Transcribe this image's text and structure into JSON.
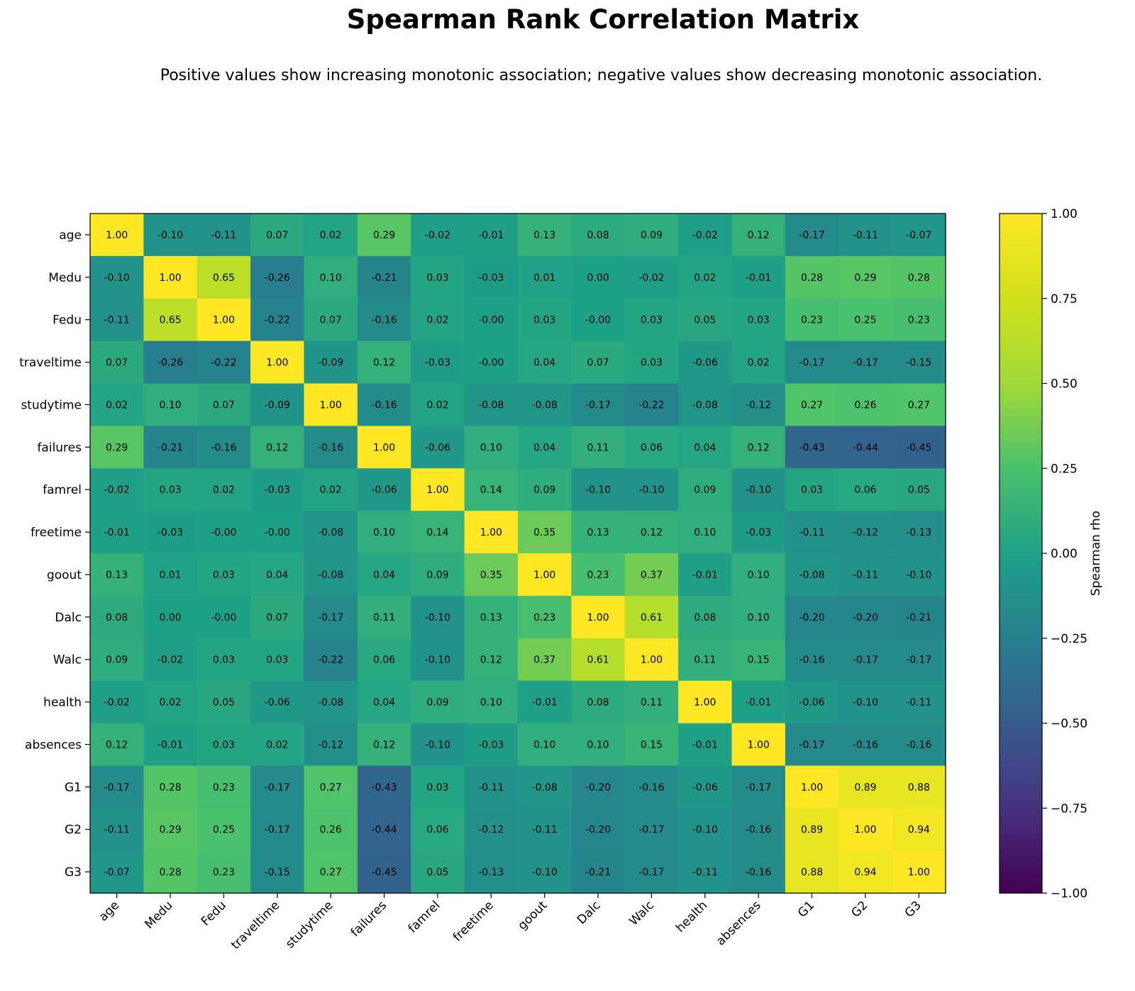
{
  "chart_data": {
    "type": "heatmap",
    "title": "Spearman Rank Correlation Matrix",
    "subtitle": "Positive values show increasing monotonic association; negative values show decreasing monotonic association.",
    "variables": [
      "age",
      "Medu",
      "Fedu",
      "traveltime",
      "studytime",
      "failures",
      "famrel",
      "freetime",
      "goout",
      "Dalc",
      "Walc",
      "health",
      "absences",
      "G1",
      "G2",
      "G3"
    ],
    "values": [
      [
        1.0,
        -0.1,
        -0.11,
        0.07,
        0.02,
        0.29,
        -0.02,
        -0.01,
        0.13,
        0.08,
        0.09,
        -0.02,
        0.12,
        -0.17,
        -0.11,
        -0.07
      ],
      [
        -0.1,
        1.0,
        0.65,
        -0.26,
        0.1,
        -0.21,
        0.03,
        -0.03,
        0.01,
        0.0,
        -0.02,
        0.02,
        -0.01,
        0.28,
        0.29,
        0.28
      ],
      [
        -0.11,
        0.65,
        1.0,
        -0.22,
        0.07,
        -0.16,
        0.02,
        -0.0,
        0.03,
        -0.0,
        0.03,
        0.05,
        0.03,
        0.23,
        0.25,
        0.23
      ],
      [
        0.07,
        -0.26,
        -0.22,
        1.0,
        -0.09,
        0.12,
        -0.03,
        -0.0,
        0.04,
        0.07,
        0.03,
        -0.06,
        0.02,
        -0.17,
        -0.17,
        -0.15
      ],
      [
        0.02,
        0.1,
        0.07,
        -0.09,
        1.0,
        -0.16,
        0.02,
        -0.08,
        -0.08,
        -0.17,
        -0.22,
        -0.08,
        -0.12,
        0.27,
        0.26,
        0.27
      ],
      [
        0.29,
        -0.21,
        -0.16,
        0.12,
        -0.16,
        1.0,
        -0.06,
        0.1,
        0.04,
        0.11,
        0.06,
        0.04,
        0.12,
        -0.43,
        -0.44,
        -0.45
      ],
      [
        -0.02,
        0.03,
        0.02,
        -0.03,
        0.02,
        -0.06,
        1.0,
        0.14,
        0.09,
        -0.1,
        -0.1,
        0.09,
        -0.1,
        0.03,
        0.06,
        0.05
      ],
      [
        -0.01,
        -0.03,
        -0.0,
        -0.0,
        -0.08,
        0.1,
        0.14,
        1.0,
        0.35,
        0.13,
        0.12,
        0.1,
        -0.03,
        -0.11,
        -0.12,
        -0.13
      ],
      [
        0.13,
        0.01,
        0.03,
        0.04,
        -0.08,
        0.04,
        0.09,
        0.35,
        1.0,
        0.23,
        0.37,
        -0.01,
        0.1,
        -0.08,
        -0.11,
        -0.1
      ],
      [
        0.08,
        0.0,
        -0.0,
        0.07,
        -0.17,
        0.11,
        -0.1,
        0.13,
        0.23,
        1.0,
        0.61,
        0.08,
        0.1,
        -0.2,
        -0.2,
        -0.21
      ],
      [
        0.09,
        -0.02,
        0.03,
        0.03,
        -0.22,
        0.06,
        -0.1,
        0.12,
        0.37,
        0.61,
        1.0,
        0.11,
        0.15,
        -0.16,
        -0.17,
        -0.17
      ],
      [
        -0.02,
        0.02,
        0.05,
        -0.06,
        -0.08,
        0.04,
        0.09,
        0.1,
        -0.01,
        0.08,
        0.11,
        1.0,
        -0.01,
        -0.06,
        -0.1,
        -0.11
      ],
      [
        0.12,
        -0.01,
        0.03,
        0.02,
        -0.12,
        0.12,
        -0.1,
        -0.03,
        0.1,
        0.1,
        0.15,
        -0.01,
        1.0,
        -0.17,
        -0.16,
        -0.16
      ],
      [
        -0.17,
        0.28,
        0.23,
        -0.17,
        0.27,
        -0.43,
        0.03,
        -0.11,
        -0.08,
        -0.2,
        -0.16,
        -0.06,
        -0.17,
        1.0,
        0.89,
        0.88
      ],
      [
        -0.11,
        0.29,
        0.25,
        -0.17,
        0.26,
        -0.44,
        0.06,
        -0.12,
        -0.11,
        -0.2,
        -0.17,
        -0.1,
        -0.16,
        0.89,
        1.0,
        0.94
      ],
      [
        -0.07,
        0.28,
        0.23,
        -0.15,
        0.27,
        -0.45,
        0.05,
        -0.13,
        -0.1,
        -0.21,
        -0.17,
        -0.11,
        -0.16,
        0.88,
        0.94,
        1.0
      ]
    ],
    "colormap": "viridis",
    "vmin": -1.0,
    "vmax": 1.0,
    "colorbar": {
      "label": "Spearman rho",
      "ticks": [
        1.0,
        0.75,
        0.5,
        0.25,
        0.0,
        -0.25,
        -0.5,
        -0.75,
        -1.0
      ],
      "tick_labels": [
        "1.00",
        "0.75",
        "0.50",
        "0.25",
        "0.00",
        "−0.25",
        "−0.50",
        "−0.75",
        "−1.00"
      ]
    }
  }
}
